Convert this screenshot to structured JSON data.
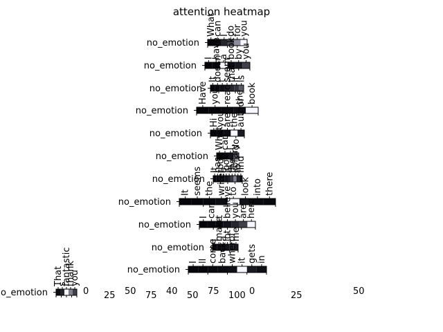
{
  "chart_data": {
    "type": "heatmap",
    "title": "attention heatmap",
    "row_labels": [
      "no_emotion",
      "no_emotion",
      "no_emotion",
      "no_emotion",
      "no_emotion",
      "no_emotion",
      "no_emotion",
      "no_emotion",
      "no_emotion",
      "no_emotion",
      "no_emotion",
      "no_emotion"
    ],
    "word_rows": [
      [
        "What",
        "can",
        "I",
        "do",
        "for",
        "you"
      ],
      [
        "I",
        "have",
        "a",
        "book",
        "by",
        "you"
      ],
      [
        "It",
        "doesn",
        "t",
        "seem",
        "that",
        "it",
        "is"
      ],
      [
        "Have",
        "you",
        "read",
        "the",
        "book"
      ],
      [
        "Hi",
        "you",
        "are",
        "the",
        "author"
      ],
      [
        "What",
        "can",
        "I",
        "do"
      ],
      [
        "It",
        "has",
        "took",
        "a",
        "look",
        "at",
        "the",
        "library",
        "to",
        "find"
      ],
      [
        "It",
        "seems",
        "the",
        "writer",
        "to",
        "look",
        "into",
        "there"
      ],
      [
        "I",
        "can",
        "t",
        "believe",
        "you",
        "are",
        "here"
      ],
      [
        "I",
        "make",
        "a",
        "lot",
        "of",
        "me"
      ],
      [
        "I",
        "ll",
        "come",
        "back",
        "when",
        "it",
        "gets",
        "in"
      ],
      [
        "That",
        "s",
        "fantastic",
        "thank",
        "you"
      ]
    ],
    "weights": [
      [
        0.02,
        0.05,
        0.15,
        0.3,
        0.55,
        0.97
      ],
      [
        0.01,
        0.03,
        0.97,
        0.06,
        0.1,
        0.25
      ],
      [
        0.02,
        0.03,
        0.05,
        0.1,
        0.15,
        0.2,
        0.35
      ],
      [
        0.01,
        0.02,
        0.04,
        0.06,
        0.97
      ],
      [
        0.02,
        0.03,
        0.05,
        0.97,
        0.1
      ],
      [
        0.03,
        0.04,
        0.08,
        0.35
      ],
      [
        0.02,
        0.03,
        0.05,
        0.06,
        0.08,
        0.12,
        0.2,
        0.5,
        0.12,
        0.06
      ],
      [
        0.02,
        0.02,
        0.03,
        0.05,
        0.97,
        0.08,
        0.04,
        0.03
      ],
      [
        0.02,
        0.03,
        0.04,
        0.08,
        0.15,
        0.25,
        0.97
      ],
      [
        0.03,
        0.04,
        0.05,
        0.08,
        0.12,
        0.1
      ],
      [
        0.02,
        0.02,
        0.03,
        0.04,
        0.06,
        0.97,
        0.1,
        0.05
      ],
      [
        0.05,
        0.15,
        0.97,
        0.5,
        0.25
      ]
    ],
    "tick_labels": [
      "0",
      "25",
      "50",
      "75",
      "40",
      "50",
      "75",
      "100",
      "0",
      "25",
      "50"
    ],
    "tick_rows": [
      [
        "0",
        "25",
        "50",
        "75",
        "100"
      ],
      [
        "0",
        "25",
        "50",
        "75",
        "100"
      ],
      [
        "0",
        "25",
        "50",
        "75",
        "100"
      ],
      [
        "0",
        "25",
        "50",
        "75",
        "100"
      ],
      [
        "0",
        "25",
        "50",
        "75",
        "100"
      ],
      [
        "0",
        "25",
        "50",
        "75"
      ],
      [
        "0",
        "25",
        "50",
        "75",
        "100"
      ],
      [
        "0",
        "25",
        "50",
        "75",
        "100"
      ],
      [
        "0",
        "25",
        "50",
        "75",
        "100"
      ],
      [
        "0",
        "25",
        "50",
        "75"
      ],
      [
        "0",
        "25",
        "50",
        "75",
        "100"
      ],
      [
        "0",
        "25",
        "50",
        "75",
        "100"
      ]
    ],
    "colormap": "bone",
    "color_low": "#000000",
    "color_high": "#ffffff"
  }
}
